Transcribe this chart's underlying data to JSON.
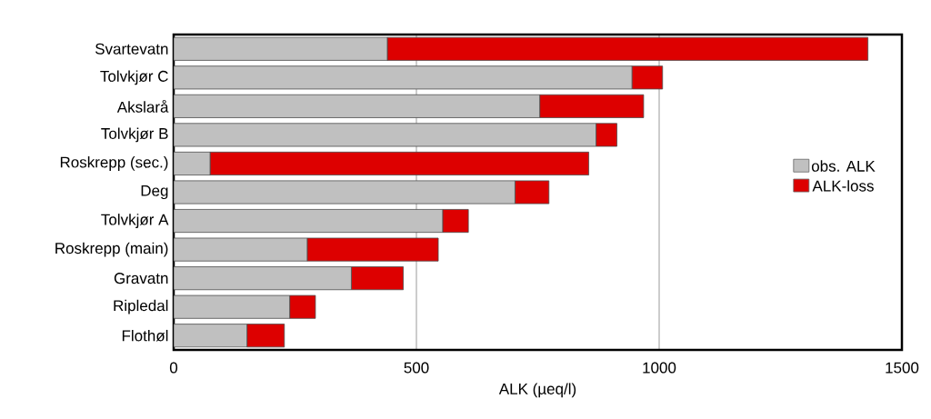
{
  "chart_data": {
    "type": "bar",
    "orientation": "horizontal",
    "stacked": true,
    "xlabel": "ALK (µeq/l)",
    "categories": [
      "Svartevatn",
      "Tolvkjør C",
      "Akslarå",
      "Tolvkjør B",
      "Roskrepp (sec.)",
      "Deg",
      "Tolvkjør A",
      "Roskrepp (main)",
      "Gravatn",
      "Ripledal",
      "Flothøl"
    ],
    "series": [
      {
        "name": "obs. ALK",
        "color": "#c0c0c0",
        "values": [
          440,
          944,
          754,
          870,
          75,
          703,
          554,
          275,
          366,
          239,
          151
        ]
      },
      {
        "name": "ALK-loss",
        "color": "#dd0000",
        "values": [
          990,
          63,
          214,
          43,
          780,
          70,
          53,
          270,
          107,
          53,
          77
        ]
      }
    ],
    "xlim": [
      0,
      1500
    ],
    "xticks": [
      0,
      500,
      1000,
      1500
    ],
    "grid": "x",
    "legend": "right"
  }
}
